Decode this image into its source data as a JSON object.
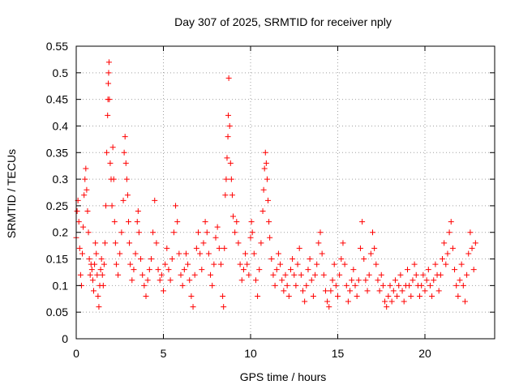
{
  "chart_data": {
    "type": "scatter",
    "title": "Day 307 of 2025, SRMTID for receiver nply",
    "xlabel": "GPS time / hours",
    "ylabel": "SRMTID / TECUs",
    "xlim": [
      0,
      24
    ],
    "ylim": [
      0,
      0.55
    ],
    "xticks": [
      0,
      5,
      10,
      15,
      20
    ],
    "yticks": [
      0,
      0.05,
      0.1,
      0.15,
      0.2,
      0.25,
      0.3,
      0.35,
      0.4,
      0.45,
      0.5,
      0.55
    ],
    "grid": true,
    "marker": "plus",
    "color": "#ff0000",
    "series": [
      {
        "values_note_free": true,
        "points": [
          [
            0.0,
            0.19
          ],
          [
            0.05,
            0.24
          ],
          [
            0.1,
            0.26
          ],
          [
            0.15,
            0.22
          ],
          [
            0.2,
            0.17
          ],
          [
            0.25,
            0.12
          ],
          [
            0.3,
            0.1
          ],
          [
            0.35,
            0.16
          ],
          [
            0.4,
            0.21
          ],
          [
            0.45,
            0.27
          ],
          [
            0.5,
            0.3
          ],
          [
            0.55,
            0.32
          ],
          [
            0.6,
            0.28
          ],
          [
            0.65,
            0.24
          ],
          [
            0.7,
            0.2
          ],
          [
            0.75,
            0.15
          ],
          [
            0.8,
            0.12
          ],
          [
            0.85,
            0.14
          ],
          [
            0.9,
            0.13
          ],
          [
            0.95,
            0.11
          ],
          [
            1.0,
            0.09
          ],
          [
            1.05,
            0.14
          ],
          [
            1.1,
            0.18
          ],
          [
            1.15,
            0.16
          ],
          [
            1.2,
            0.12
          ],
          [
            1.25,
            0.08
          ],
          [
            1.3,
            0.06
          ],
          [
            1.35,
            0.1
          ],
          [
            1.4,
            0.13
          ],
          [
            1.45,
            0.15
          ],
          [
            1.5,
            0.12
          ],
          [
            1.55,
            0.1
          ],
          [
            1.6,
            0.14
          ],
          [
            1.65,
            0.18
          ],
          [
            1.7,
            0.25
          ],
          [
            1.75,
            0.35
          ],
          [
            1.8,
            0.42
          ],
          [
            1.82,
            0.45
          ],
          [
            1.84,
            0.48
          ],
          [
            1.86,
            0.5
          ],
          [
            1.88,
            0.52
          ],
          [
            1.9,
            0.45
          ],
          [
            1.95,
            0.33
          ],
          [
            2.0,
            0.3
          ],
          [
            2.05,
            0.25
          ],
          [
            2.1,
            0.36
          ],
          [
            2.15,
            0.3
          ],
          [
            2.2,
            0.22
          ],
          [
            2.25,
            0.18
          ],
          [
            2.3,
            0.14
          ],
          [
            2.4,
            0.12
          ],
          [
            2.5,
            0.16
          ],
          [
            2.6,
            0.2
          ],
          [
            2.7,
            0.26
          ],
          [
            2.75,
            0.35
          ],
          [
            2.8,
            0.38
          ],
          [
            2.85,
            0.33
          ],
          [
            2.9,
            0.3
          ],
          [
            2.95,
            0.27
          ],
          [
            3.0,
            0.22
          ],
          [
            3.05,
            0.18
          ],
          [
            3.1,
            0.14
          ],
          [
            3.2,
            0.11
          ],
          [
            3.3,
            0.13
          ],
          [
            3.4,
            0.16
          ],
          [
            3.5,
            0.22
          ],
          [
            3.55,
            0.24
          ],
          [
            3.6,
            0.2
          ],
          [
            3.7,
            0.15
          ],
          [
            3.8,
            0.12
          ],
          [
            3.9,
            0.1
          ],
          [
            4.0,
            0.08
          ],
          [
            4.1,
            0.11
          ],
          [
            4.2,
            0.13
          ],
          [
            4.3,
            0.15
          ],
          [
            4.4,
            0.2
          ],
          [
            4.5,
            0.26
          ],
          [
            4.6,
            0.18
          ],
          [
            4.7,
            0.13
          ],
          [
            4.8,
            0.11
          ],
          [
            4.9,
            0.12
          ],
          [
            5.0,
            0.09
          ],
          [
            5.1,
            0.14
          ],
          [
            5.2,
            0.17
          ],
          [
            5.3,
            0.13
          ],
          [
            5.4,
            0.11
          ],
          [
            5.5,
            0.15
          ],
          [
            5.6,
            0.2
          ],
          [
            5.7,
            0.25
          ],
          [
            5.8,
            0.22
          ],
          [
            5.9,
            0.16
          ],
          [
            6.0,
            0.12
          ],
          [
            6.1,
            0.1
          ],
          [
            6.2,
            0.13
          ],
          [
            6.3,
            0.16
          ],
          [
            6.4,
            0.14
          ],
          [
            6.5,
            0.11
          ],
          [
            6.6,
            0.08
          ],
          [
            6.7,
            0.06
          ],
          [
            6.8,
            0.12
          ],
          [
            6.9,
            0.17
          ],
          [
            7.0,
            0.2
          ],
          [
            7.1,
            0.16
          ],
          [
            7.2,
            0.13
          ],
          [
            7.3,
            0.18
          ],
          [
            7.4,
            0.22
          ],
          [
            7.5,
            0.2
          ],
          [
            7.6,
            0.16
          ],
          [
            7.7,
            0.12
          ],
          [
            7.8,
            0.1
          ],
          [
            7.9,
            0.14
          ],
          [
            8.0,
            0.19
          ],
          [
            8.1,
            0.21
          ],
          [
            8.2,
            0.17
          ],
          [
            8.3,
            0.14
          ],
          [
            8.4,
            0.08
          ],
          [
            8.45,
            0.06
          ],
          [
            8.5,
            0.17
          ],
          [
            8.55,
            0.27
          ],
          [
            8.6,
            0.3
          ],
          [
            8.65,
            0.34
          ],
          [
            8.7,
            0.38
          ],
          [
            8.72,
            0.42
          ],
          [
            8.75,
            0.49
          ],
          [
            8.8,
            0.4
          ],
          [
            8.85,
            0.33
          ],
          [
            8.9,
            0.3
          ],
          [
            8.95,
            0.27
          ],
          [
            9.0,
            0.23
          ],
          [
            9.1,
            0.2
          ],
          [
            9.2,
            0.22
          ],
          [
            9.3,
            0.18
          ],
          [
            9.4,
            0.14
          ],
          [
            9.5,
            0.11
          ],
          [
            9.6,
            0.13
          ],
          [
            9.7,
            0.16
          ],
          [
            9.8,
            0.14
          ],
          [
            9.9,
            0.12
          ],
          [
            10.0,
            0.19
          ],
          [
            10.05,
            0.22
          ],
          [
            10.1,
            0.2
          ],
          [
            10.2,
            0.16
          ],
          [
            10.3,
            0.11
          ],
          [
            10.4,
            0.08
          ],
          [
            10.5,
            0.13
          ],
          [
            10.6,
            0.18
          ],
          [
            10.7,
            0.24
          ],
          [
            10.75,
            0.28
          ],
          [
            10.8,
            0.32
          ],
          [
            10.85,
            0.35
          ],
          [
            10.9,
            0.33
          ],
          [
            10.95,
            0.3
          ],
          [
            11.0,
            0.26
          ],
          [
            11.05,
            0.22
          ],
          [
            11.1,
            0.19
          ],
          [
            11.2,
            0.15
          ],
          [
            11.3,
            0.12
          ],
          [
            11.4,
            0.1
          ],
          [
            11.5,
            0.13
          ],
          [
            11.6,
            0.16
          ],
          [
            11.7,
            0.14
          ],
          [
            11.8,
            0.11
          ],
          [
            11.9,
            0.09
          ],
          [
            12.0,
            0.12
          ],
          [
            12.1,
            0.1
          ],
          [
            12.2,
            0.08
          ],
          [
            12.3,
            0.13
          ],
          [
            12.4,
            0.15
          ],
          [
            12.5,
            0.12
          ],
          [
            12.6,
            0.1
          ],
          [
            12.7,
            0.14
          ],
          [
            12.8,
            0.17
          ],
          [
            12.9,
            0.12
          ],
          [
            13.0,
            0.09
          ],
          [
            13.1,
            0.07
          ],
          [
            13.2,
            0.1
          ],
          [
            13.3,
            0.13
          ],
          [
            13.4,
            0.15
          ],
          [
            13.5,
            0.11
          ],
          [
            13.6,
            0.08
          ],
          [
            13.7,
            0.12
          ],
          [
            13.8,
            0.14
          ],
          [
            13.9,
            0.18
          ],
          [
            14.0,
            0.2
          ],
          [
            14.1,
            0.16
          ],
          [
            14.2,
            0.12
          ],
          [
            14.3,
            0.09
          ],
          [
            14.4,
            0.07
          ],
          [
            14.5,
            0.06
          ],
          [
            14.6,
            0.09
          ],
          [
            14.7,
            0.11
          ],
          [
            14.8,
            0.14
          ],
          [
            14.9,
            0.1
          ],
          [
            15.0,
            0.08
          ],
          [
            15.1,
            0.12
          ],
          [
            15.2,
            0.15
          ],
          [
            15.3,
            0.18
          ],
          [
            15.4,
            0.14
          ],
          [
            15.5,
            0.1
          ],
          [
            15.6,
            0.07
          ],
          [
            15.7,
            0.09
          ],
          [
            15.8,
            0.11
          ],
          [
            15.9,
            0.13
          ],
          [
            16.0,
            0.1
          ],
          [
            16.1,
            0.08
          ],
          [
            16.2,
            0.11
          ],
          [
            16.3,
            0.17
          ],
          [
            16.4,
            0.22
          ],
          [
            16.5,
            0.15
          ],
          [
            16.6,
            0.11
          ],
          [
            16.7,
            0.09
          ],
          [
            16.8,
            0.12
          ],
          [
            16.9,
            0.16
          ],
          [
            17.0,
            0.2
          ],
          [
            17.1,
            0.17
          ],
          [
            17.2,
            0.14
          ],
          [
            17.3,
            0.11
          ],
          [
            17.4,
            0.09
          ],
          [
            17.5,
            0.12
          ],
          [
            17.6,
            0.1
          ],
          [
            17.7,
            0.07
          ],
          [
            17.8,
            0.06
          ],
          [
            17.9,
            0.08
          ],
          [
            18.0,
            0.1
          ],
          [
            18.1,
            0.07
          ],
          [
            18.2,
            0.09
          ],
          [
            18.3,
            0.11
          ],
          [
            18.4,
            0.08
          ],
          [
            18.5,
            0.1
          ],
          [
            18.6,
            0.12
          ],
          [
            18.7,
            0.09
          ],
          [
            18.8,
            0.07
          ],
          [
            18.9,
            0.1
          ],
          [
            19.0,
            0.13
          ],
          [
            19.1,
            0.1
          ],
          [
            19.2,
            0.08
          ],
          [
            19.3,
            0.11
          ],
          [
            19.4,
            0.14
          ],
          [
            19.5,
            0.12
          ],
          [
            19.6,
            0.1
          ],
          [
            19.7,
            0.08
          ],
          [
            19.8,
            0.1
          ],
          [
            19.9,
            0.12
          ],
          [
            20.0,
            0.09
          ],
          [
            20.1,
            0.11
          ],
          [
            20.2,
            0.13
          ],
          [
            20.3,
            0.1
          ],
          [
            20.4,
            0.08
          ],
          [
            20.5,
            0.11
          ],
          [
            20.6,
            0.14
          ],
          [
            20.7,
            0.12
          ],
          [
            20.8,
            0.09
          ],
          [
            20.9,
            0.12
          ],
          [
            21.0,
            0.15
          ],
          [
            21.1,
            0.18
          ],
          [
            21.2,
            0.14
          ],
          [
            21.3,
            0.16
          ],
          [
            21.4,
            0.2
          ],
          [
            21.5,
            0.22
          ],
          [
            21.6,
            0.17
          ],
          [
            21.7,
            0.13
          ],
          [
            21.8,
            0.1
          ],
          [
            21.9,
            0.08
          ],
          [
            22.0,
            0.11
          ],
          [
            22.1,
            0.14
          ],
          [
            22.2,
            0.1
          ],
          [
            22.3,
            0.07
          ],
          [
            22.4,
            0.12
          ],
          [
            22.5,
            0.16
          ],
          [
            22.6,
            0.2
          ],
          [
            22.7,
            0.17
          ],
          [
            22.8,
            0.13
          ],
          [
            22.9,
            0.18
          ]
        ]
      }
    ]
  }
}
